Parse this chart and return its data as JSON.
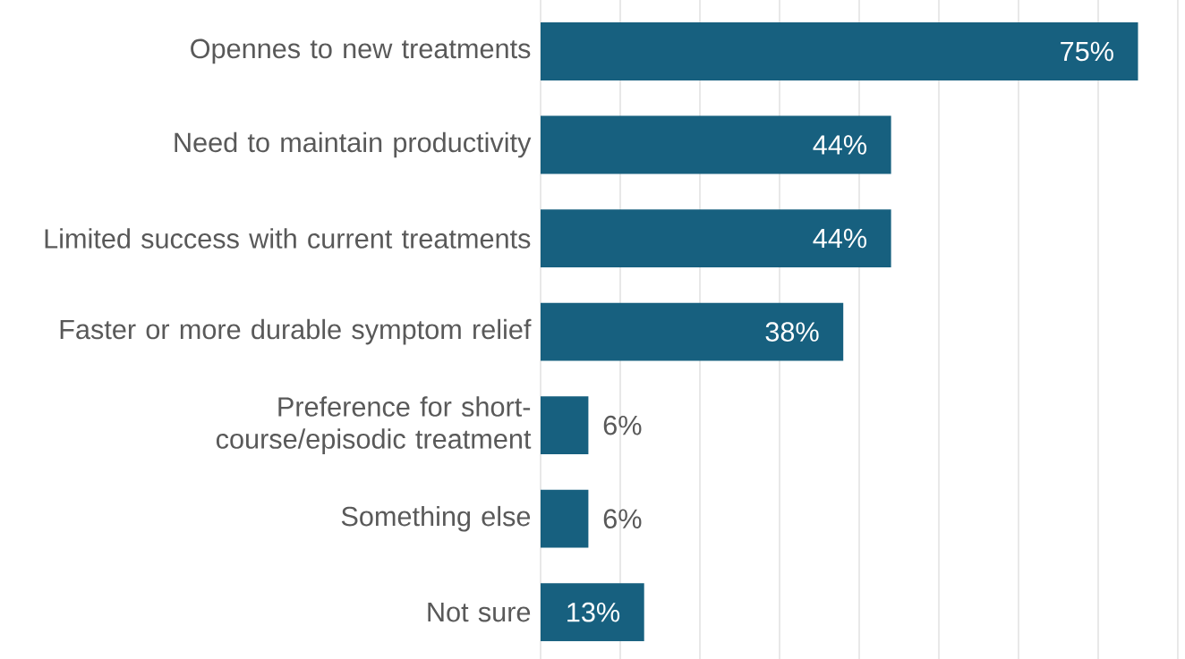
{
  "chart_data": {
    "type": "bar",
    "orientation": "horizontal",
    "categories": [
      "Opennes to new treatments",
      "Need to maintain productivity",
      "Limited success with current treatments",
      "Faster or more durable symptom relief",
      "Preference for short-course/episodic treatment",
      "Something else",
      "Not sure"
    ],
    "values": [
      75,
      44,
      44,
      38,
      6,
      6,
      13
    ],
    "value_labels": [
      "75%",
      "44%",
      "44%",
      "38%",
      "6%",
      "6%",
      "13%"
    ],
    "color": "#17607f",
    "xlim": [
      0,
      80
    ],
    "xticks": [
      {
        "value": 0,
        "label": null
      },
      {
        "value": 10,
        "label": null
      },
      {
        "value": 20,
        "label": null
      },
      {
        "value": 30,
        "label": null
      },
      {
        "value": 40,
        "label": null
      },
      {
        "value": 50,
        "label": null
      },
      {
        "value": 60,
        "label": null
      },
      {
        "value": 70,
        "label": null
      },
      {
        "value": 80,
        "label": null
      }
    ],
    "grid": "x",
    "tick_labels": "y"
  }
}
